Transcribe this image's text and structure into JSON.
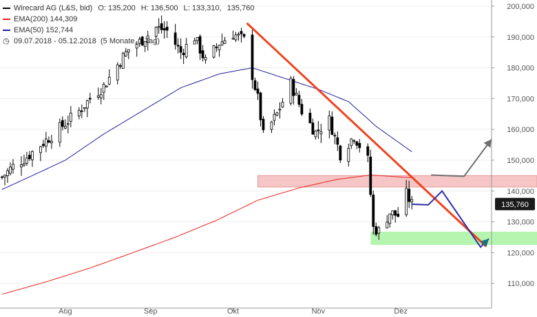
{
  "legend": {
    "instrument": "Wirecard AG (L&S, bid)",
    "o_label": "O:",
    "o_value": "135,200",
    "h_label": "H:",
    "h_value": "136,500",
    "l_label": "L:",
    "l_value": "133,310",
    "c_value": "135,760",
    "ema200_label": "EMA(200)",
    "ema200_value": "144,309",
    "ema50_label": "EMA(50)",
    "ema50_value": "152,744",
    "range_text": "09.07.2018 - 05.12.2018",
    "period_text": "(5 Monate, 1 Tag)",
    "clock_icon": "clock-icon"
  },
  "colors": {
    "ema200": "#e8211d",
    "ema50": "#1f1f9a",
    "trendline": "#f0421f",
    "resistance_zone": "#f6c5c5",
    "support_zone": "#b5f5b0",
    "projection_up": "#707070",
    "projection_blue": "#2a2aa8",
    "arrow_teal": "#1f6f80",
    "candle": "#000000",
    "price_label_bg": "#1a1a1a"
  },
  "chart_data": {
    "type": "candlestick",
    "y_axis": {
      "min": 102000,
      "max": 202000,
      "ticks": [
        110000,
        120000,
        130000,
        140000,
        150000,
        160000,
        170000,
        180000,
        190000,
        200000
      ],
      "tick_labels": [
        "110,000",
        "120,000",
        "130,000",
        "140,000",
        "150,000",
        "160,000",
        "170,000",
        "180,000",
        "190,000",
        "200,000"
      ],
      "position": "right"
    },
    "x_axis": {
      "labels": [
        "Aug",
        "Sep",
        "Okt",
        "Nov",
        "Dez"
      ],
      "label_dates": [
        "2018-08-01",
        "2018-09-01",
        "2018-10-01",
        "2018-11-01",
        "2018-12-01"
      ],
      "start": "2018-07-09",
      "end": "2018-12-05"
    },
    "last_price": 135760,
    "last_price_label": "135,760",
    "close_series_sampled": [
      {
        "date": "2018-07-09",
        "close": 144500
      },
      {
        "date": "2018-07-13",
        "close": 148000
      },
      {
        "date": "2018-07-18",
        "close": 151000
      },
      {
        "date": "2018-07-23",
        "close": 155000
      },
      {
        "date": "2018-07-27",
        "close": 158000
      },
      {
        "date": "2018-08-01",
        "close": 162000
      },
      {
        "date": "2018-08-06",
        "close": 166000
      },
      {
        "date": "2018-08-10",
        "close": 170000
      },
      {
        "date": "2018-08-15",
        "close": 174000
      },
      {
        "date": "2018-08-20",
        "close": 181000
      },
      {
        "date": "2018-08-24",
        "close": 186000
      },
      {
        "date": "2018-08-29",
        "close": 189000
      },
      {
        "date": "2018-09-03",
        "close": 193000
      },
      {
        "date": "2018-09-07",
        "close": 192000
      },
      {
        "date": "2018-09-12",
        "close": 185000
      },
      {
        "date": "2018-09-17",
        "close": 190000
      },
      {
        "date": "2018-09-21",
        "close": 182000
      },
      {
        "date": "2018-09-26",
        "close": 188000
      },
      {
        "date": "2018-10-01",
        "close": 191000
      },
      {
        "date": "2018-10-05",
        "close": 189000
      },
      {
        "date": "2018-10-10",
        "close": 170000
      },
      {
        "date": "2018-10-12",
        "close": 158000
      },
      {
        "date": "2018-10-17",
        "close": 165000
      },
      {
        "date": "2018-10-22",
        "close": 175000
      },
      {
        "date": "2018-10-26",
        "close": 166000
      },
      {
        "date": "2018-10-31",
        "close": 159000
      },
      {
        "date": "2018-11-05",
        "close": 163000
      },
      {
        "date": "2018-11-09",
        "close": 152000
      },
      {
        "date": "2018-11-14",
        "close": 158000
      },
      {
        "date": "2018-11-19",
        "close": 150000
      },
      {
        "date": "2018-11-21",
        "close": 128000
      },
      {
        "date": "2018-11-23",
        "close": 127000
      },
      {
        "date": "2018-11-27",
        "close": 133000
      },
      {
        "date": "2018-11-30",
        "close": 132000
      },
      {
        "date": "2018-12-03",
        "close": 139000
      },
      {
        "date": "2018-12-05",
        "close": 135760
      }
    ],
    "ema50_sampled": [
      {
        "date": "2018-07-09",
        "value": 140500
      },
      {
        "date": "2018-07-20",
        "value": 145000
      },
      {
        "date": "2018-08-01",
        "value": 150000
      },
      {
        "date": "2018-08-15",
        "value": 158500
      },
      {
        "date": "2018-08-29",
        "value": 166000
      },
      {
        "date": "2018-09-12",
        "value": 173500
      },
      {
        "date": "2018-09-26",
        "value": 178000
      },
      {
        "date": "2018-10-08",
        "value": 180000
      },
      {
        "date": "2018-10-20",
        "value": 176500
      },
      {
        "date": "2018-11-01",
        "value": 173000
      },
      {
        "date": "2018-11-12",
        "value": 169000
      },
      {
        "date": "2018-11-22",
        "value": 161000
      },
      {
        "date": "2018-12-05",
        "value": 152744
      }
    ],
    "ema200_sampled": [
      {
        "date": "2018-07-09",
        "value": 106500
      },
      {
        "date": "2018-07-25",
        "value": 110500
      },
      {
        "date": "2018-08-10",
        "value": 115000
      },
      {
        "date": "2018-08-25",
        "value": 119800
      },
      {
        "date": "2018-09-10",
        "value": 125000
      },
      {
        "date": "2018-09-25",
        "value": 130500
      },
      {
        "date": "2018-10-10",
        "value": 137000
      },
      {
        "date": "2018-10-25",
        "value": 141000
      },
      {
        "date": "2018-11-08",
        "value": 143800
      },
      {
        "date": "2018-11-20",
        "value": 145200
      },
      {
        "date": "2018-12-05",
        "value": 144309
      }
    ],
    "annotations": {
      "trendline": [
        {
          "date": "2018-10-06",
          "value": 194500
        },
        {
          "date": "2019-01-01",
          "value": 122000
        }
      ],
      "resistance_zone": {
        "y_low": 141300,
        "y_high": 145000
      },
      "support_zone": {
        "y_low": 122500,
        "y_high": 126800
      },
      "projection_up": [
        {
          "date": "2018-12-12",
          "value": 145200
        },
        {
          "date": "2018-12-24",
          "value": 144800
        },
        {
          "date": "2019-01-03",
          "value": 156800
        }
      ],
      "projection_down": [
        {
          "date": "2018-12-05",
          "value": 135700
        },
        {
          "date": "2018-12-11",
          "value": 135500
        },
        {
          "date": "2018-12-16",
          "value": 140000
        },
        {
          "date": "2018-12-30",
          "value": 121800
        },
        {
          "date": "2019-01-02",
          "value": 124500
        }
      ]
    }
  }
}
